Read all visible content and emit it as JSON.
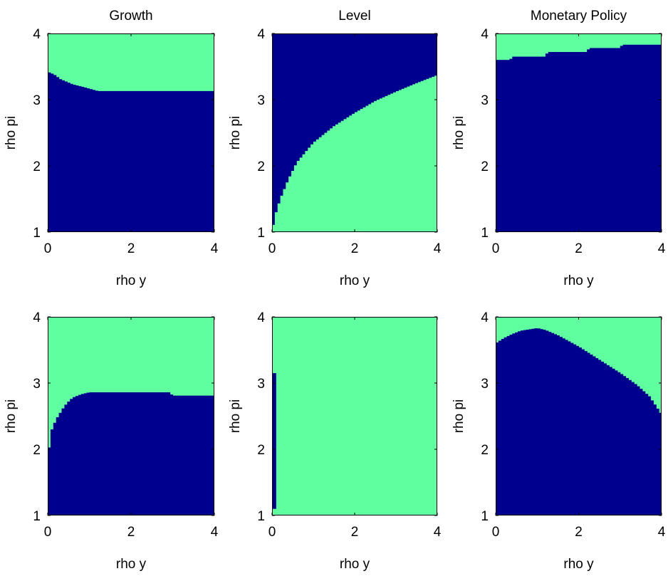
{
  "figure": {
    "colors": {
      "region_a": "#5fff9f",
      "region_b": "#00008f",
      "axis": "#000000"
    }
  },
  "chart_data": [
    {
      "type": "heatmap",
      "title": "Growth",
      "xlabel": "rho y",
      "ylabel": "rho pi",
      "xlim": [
        0,
        4
      ],
      "ylim": [
        1,
        4
      ],
      "xticks": [
        0,
        2,
        4
      ],
      "yticks": [
        1,
        2,
        3,
        4
      ],
      "region_above_boundary": "region_a",
      "region_below_boundary": "region_b",
      "boundary": [
        [
          0,
          3.42
        ],
        [
          0.15,
          3.38
        ],
        [
          0.3,
          3.31
        ],
        [
          0.45,
          3.27
        ],
        [
          0.6,
          3.23
        ],
        [
          0.8,
          3.2
        ],
        [
          1.2,
          3.13
        ],
        [
          2,
          3.13
        ],
        [
          3,
          3.13
        ],
        [
          4,
          3.13
        ]
      ]
    },
    {
      "type": "heatmap",
      "title": "Level",
      "xlabel": "rho y",
      "ylabel": "rho pi",
      "xlim": [
        0,
        4
      ],
      "ylim": [
        1,
        4
      ],
      "xticks": [
        0,
        2,
        4
      ],
      "yticks": [
        1,
        2,
        3,
        4
      ],
      "region_above_boundary": "region_b",
      "region_below_boundary": "region_a",
      "boundary": [
        [
          0,
          1
        ],
        [
          0.03,
          1.1
        ],
        [
          0.1,
          1.3
        ],
        [
          0.2,
          1.5
        ],
        [
          0.4,
          1.8
        ],
        [
          0.6,
          2.05
        ],
        [
          0.8,
          2.2
        ],
        [
          1,
          2.35
        ],
        [
          1.5,
          2.6
        ],
        [
          2,
          2.8
        ],
        [
          2.5,
          2.98
        ],
        [
          3,
          3.12
        ],
        [
          3.5,
          3.25
        ],
        [
          4,
          3.37
        ]
      ]
    },
    {
      "type": "heatmap",
      "title": "Monetary Policy",
      "xlabel": "rho y",
      "ylabel": "rho pi",
      "xlim": [
        0,
        4
      ],
      "ylim": [
        1,
        4
      ],
      "xticks": [
        0,
        2,
        4
      ],
      "yticks": [
        1,
        2,
        3,
        4
      ],
      "region_above_boundary": "region_a",
      "region_below_boundary": "region_b",
      "boundary": [
        [
          0,
          3.6
        ],
        [
          0.35,
          3.6
        ],
        [
          0.4,
          3.65
        ],
        [
          1.2,
          3.65
        ],
        [
          1.25,
          3.72
        ],
        [
          2.2,
          3.72
        ],
        [
          2.25,
          3.78
        ],
        [
          3,
          3.78
        ],
        [
          3.05,
          3.83
        ],
        [
          4,
          3.83
        ]
      ]
    },
    {
      "type": "heatmap",
      "title": "",
      "xlabel": "rho y",
      "ylabel": "rho pi",
      "xlim": [
        0,
        4
      ],
      "ylim": [
        1,
        4
      ],
      "xticks": [
        0,
        2,
        4
      ],
      "yticks": [
        1,
        2,
        3,
        4
      ],
      "region_above_boundary": "region_a",
      "region_below_boundary": "region_b",
      "boundary": [
        [
          0,
          1.88
        ],
        [
          0.05,
          2.1
        ],
        [
          0.1,
          2.3
        ],
        [
          0.2,
          2.45
        ],
        [
          0.3,
          2.55
        ],
        [
          0.4,
          2.65
        ],
        [
          0.5,
          2.72
        ],
        [
          0.6,
          2.78
        ],
        [
          0.8,
          2.83
        ],
        [
          1,
          2.86
        ],
        [
          2.9,
          2.86
        ],
        [
          3,
          2.81
        ],
        [
          4,
          2.81
        ]
      ]
    },
    {
      "type": "heatmap",
      "title": "",
      "xlabel": "rho y",
      "ylabel": "rho pi",
      "xlim": [
        0,
        4
      ],
      "ylim": [
        1,
        4
      ],
      "xticks": [
        0,
        2,
        4
      ],
      "yticks": [
        1,
        2,
        3,
        4
      ],
      "background_region": "region_a",
      "blocks": [
        {
          "region": "region_b",
          "x": [
            0,
            0.1
          ],
          "y": [
            1.1,
            3.15
          ]
        }
      ]
    },
    {
      "type": "heatmap",
      "title": "",
      "xlabel": "rho y",
      "ylabel": "rho pi",
      "xlim": [
        0,
        4
      ],
      "ylim": [
        1,
        4
      ],
      "xticks": [
        0,
        2,
        4
      ],
      "yticks": [
        1,
        2,
        3,
        4
      ],
      "region_above_boundary": "region_a",
      "region_below_boundary": "region_b",
      "boundary": [
        [
          0,
          3.6
        ],
        [
          0.2,
          3.68
        ],
        [
          0.4,
          3.74
        ],
        [
          0.6,
          3.79
        ],
        [
          0.8,
          3.81
        ],
        [
          1,
          3.83
        ],
        [
          1.2,
          3.8
        ],
        [
          1.5,
          3.72
        ],
        [
          2,
          3.55
        ],
        [
          2.5,
          3.35
        ],
        [
          3,
          3.15
        ],
        [
          3.4,
          2.97
        ],
        [
          3.7,
          2.8
        ],
        [
          4,
          2.52
        ]
      ]
    }
  ]
}
